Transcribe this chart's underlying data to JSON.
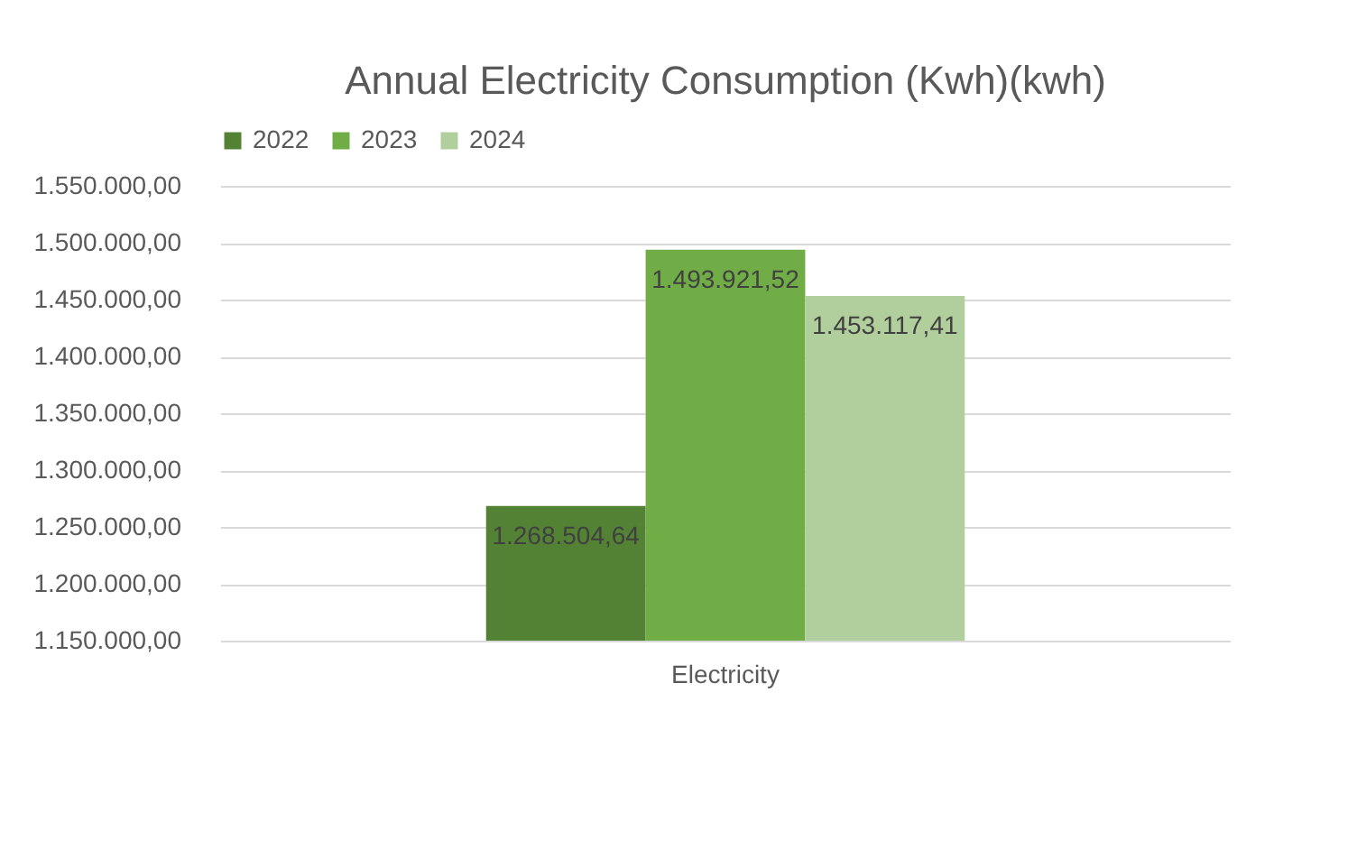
{
  "chart_data": {
    "type": "bar",
    "title": "Annual Electricity Consumption (Kwh)(kwh)",
    "categories": [
      "Electricity"
    ],
    "series": [
      {
        "name": "2022",
        "color": "#548235",
        "values": [
          1268504.64
        ],
        "value_labels": [
          "1.268.504,64"
        ]
      },
      {
        "name": "2023",
        "color": "#70ad47",
        "values": [
          1493921.52
        ],
        "value_labels": [
          "1.493.921,52"
        ]
      },
      {
        "name": "2024",
        "color": "#b1cf9c",
        "values": [
          1453117.41
        ],
        "value_labels": [
          "1.453.117,41"
        ]
      }
    ],
    "ylim": [
      1150000,
      1550000
    ],
    "yticks": [
      {
        "value": 1150000,
        "label": "1.150.000,00"
      },
      {
        "value": 1200000,
        "label": "1.200.000,00"
      },
      {
        "value": 1250000,
        "label": "1.250.000,00"
      },
      {
        "value": 1300000,
        "label": "1.300.000,00"
      },
      {
        "value": 1350000,
        "label": "1.350.000,00"
      },
      {
        "value": 1400000,
        "label": "1.400.000,00"
      },
      {
        "value": 1450000,
        "label": "1.450.000,00"
      },
      {
        "value": 1500000,
        "label": "1.500.000,00"
      },
      {
        "value": 1550000,
        "label": "1.550.000,00"
      }
    ],
    "grid": "y",
    "legend": "top"
  }
}
